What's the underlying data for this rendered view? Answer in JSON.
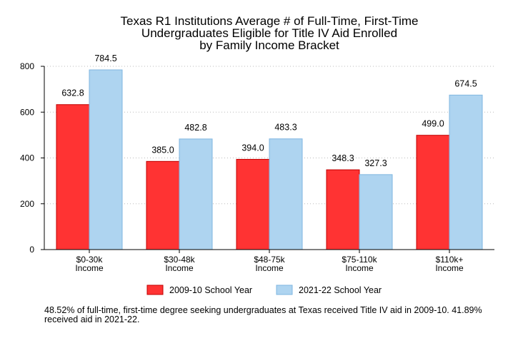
{
  "chart_data": {
    "type": "bar",
    "title": [
      "Texas R1 Institutions Average # of Full-Time, First-Time",
      "Undergraduates Eligible for Title IV Aid Enrolled",
      "by Family Income Bracket"
    ],
    "categories": [
      [
        "$0-30k",
        "Income"
      ],
      [
        "$30-48k",
        "Income"
      ],
      [
        "$48-75k",
        "Income"
      ],
      [
        "$75-110k",
        "Income"
      ],
      [
        "$110k+",
        "Income"
      ]
    ],
    "series": [
      {
        "name": "2009-10 School Year",
        "values": [
          632.8,
          385.0,
          394.0,
          348.3,
          499.0
        ],
        "color": "#ff3333",
        "stroke": "#c00000"
      },
      {
        "name": "2021-22 School Year",
        "values": [
          784.5,
          482.8,
          483.3,
          327.3,
          674.5
        ],
        "color": "#aed4f0",
        "stroke": "#7fb6e0"
      }
    ],
    "ylim": [
      0,
      800
    ],
    "yticks": [
      0,
      200,
      400,
      600,
      800
    ],
    "grid": true,
    "legend": "bottom"
  },
  "footnote": "48.52% of full-time, first-time degree seeking undergraduates at Texas received Title IV aid in 2009-10. 41.89% received aid in 2021-22."
}
